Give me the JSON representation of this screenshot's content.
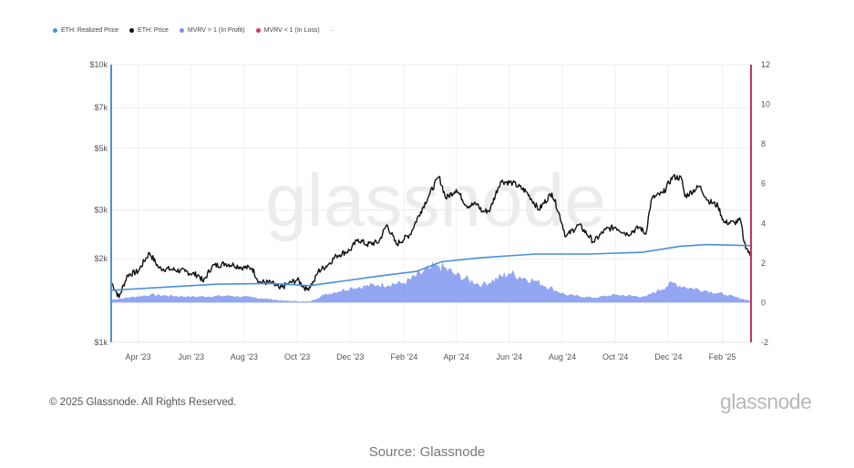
{
  "legend": {
    "items": [
      {
        "label": "ETH: Realized Price",
        "color": "#4a90d9"
      },
      {
        "label": "ETH: Price",
        "color": "#111111"
      },
      {
        "label": "MVRV > 1 (In Profit)",
        "color": "#7b8ff0"
      },
      {
        "label": "MVRV < 1 (In Loss)",
        "color": "#d9365e"
      }
    ],
    "more": "–"
  },
  "watermark": "glassnode",
  "footer": {
    "copyright": "© 2025 Glassnode. All Rights Reserved.",
    "brand": "glassnode",
    "source": "Source: Glassnode"
  },
  "colors": {
    "price": "#111111",
    "realized": "#4a90d9",
    "mvrv_fill": "#8096ef",
    "left_axis": "#4a90d9",
    "right_axis": "#c8325c",
    "watermark": "#ececec"
  },
  "chart_data": {
    "type": "line",
    "title": "",
    "x_range": [
      "2023-03-01",
      "2025-03-05"
    ],
    "y_left": {
      "scale": "log",
      "ylim": [
        1000,
        10000
      ],
      "ticks": [
        {
          "v": 1000,
          "label": "$1k"
        },
        {
          "v": 2000,
          "label": "$2k"
        },
        {
          "v": 3000,
          "label": "$3k"
        },
        {
          "v": 5000,
          "label": "$5k"
        },
        {
          "v": 7000,
          "label": "$7k"
        },
        {
          "v": 10000,
          "label": "$10k"
        }
      ]
    },
    "y_right": {
      "scale": "linear",
      "ylim": [
        -2,
        12
      ],
      "ticks": [
        {
          "v": -2,
          "label": "-2"
        },
        {
          "v": 0,
          "label": "0"
        },
        {
          "v": 2,
          "label": "2"
        },
        {
          "v": 4,
          "label": "4"
        },
        {
          "v": 6,
          "label": "6"
        },
        {
          "v": 8,
          "label": "8"
        },
        {
          "v": 10,
          "label": "10"
        },
        {
          "v": 12,
          "label": "12"
        }
      ]
    },
    "x_ticks": [
      {
        "date": "2023-04-01",
        "label": "Apr '23"
      },
      {
        "date": "2023-06-01",
        "label": "Jun '23"
      },
      {
        "date": "2023-08-01",
        "label": "Aug '23"
      },
      {
        "date": "2023-10-01",
        "label": "Oct '23"
      },
      {
        "date": "2023-12-01",
        "label": "Dec '23"
      },
      {
        "date": "2024-02-01",
        "label": "Feb '24"
      },
      {
        "date": "2024-04-01",
        "label": "Apr '24"
      },
      {
        "date": "2024-06-01",
        "label": "Jun '24"
      },
      {
        "date": "2024-08-01",
        "label": "Aug '24"
      },
      {
        "date": "2024-10-01",
        "label": "Oct '24"
      },
      {
        "date": "2024-12-01",
        "label": "Dec '24"
      },
      {
        "date": "2025-02-01",
        "label": "Feb '25"
      }
    ],
    "grid": true,
    "series": [
      {
        "name": "ETH: Price",
        "axis": "left",
        "points": [
          [
            "2023-03-01",
            1650
          ],
          [
            "2023-03-10",
            1450
          ],
          [
            "2023-03-20",
            1750
          ],
          [
            "2023-04-01",
            1800
          ],
          [
            "2023-04-14",
            2100
          ],
          [
            "2023-04-25",
            1850
          ],
          [
            "2023-05-10",
            1830
          ],
          [
            "2023-05-25",
            1800
          ],
          [
            "2023-06-10",
            1740
          ],
          [
            "2023-06-15",
            1650
          ],
          [
            "2023-06-25",
            1880
          ],
          [
            "2023-07-10",
            1920
          ],
          [
            "2023-07-20",
            1900
          ],
          [
            "2023-07-31",
            1860
          ],
          [
            "2023-08-10",
            1850
          ],
          [
            "2023-08-18",
            1650
          ],
          [
            "2023-09-01",
            1640
          ],
          [
            "2023-09-11",
            1560
          ],
          [
            "2023-09-20",
            1620
          ],
          [
            "2023-10-01",
            1680
          ],
          [
            "2023-10-12",
            1550
          ],
          [
            "2023-10-20",
            1650
          ],
          [
            "2023-10-25",
            1800
          ],
          [
            "2023-11-05",
            1900
          ],
          [
            "2023-11-15",
            2050
          ],
          [
            "2023-12-01",
            2150
          ],
          [
            "2023-12-10",
            2350
          ],
          [
            "2023-12-20",
            2250
          ],
          [
            "2024-01-03",
            2300
          ],
          [
            "2024-01-12",
            2650
          ],
          [
            "2024-01-23",
            2250
          ],
          [
            "2024-02-08",
            2450
          ],
          [
            "2024-02-20",
            2950
          ],
          [
            "2024-03-01",
            3400
          ],
          [
            "2024-03-12",
            3950
          ],
          [
            "2024-03-20",
            3300
          ],
          [
            "2024-04-01",
            3550
          ],
          [
            "2024-04-13",
            3100
          ],
          [
            "2024-04-25",
            3150
          ],
          [
            "2024-05-01",
            2950
          ],
          [
            "2024-05-10",
            3000
          ],
          [
            "2024-05-22",
            3800
          ],
          [
            "2024-06-05",
            3750
          ],
          [
            "2024-06-20",
            3500
          ],
          [
            "2024-07-05",
            3000
          ],
          [
            "2024-07-20",
            3450
          ],
          [
            "2024-08-05",
            2400
          ],
          [
            "2024-08-20",
            2650
          ],
          [
            "2024-09-06",
            2300
          ],
          [
            "2024-09-20",
            2550
          ],
          [
            "2024-10-01",
            2600
          ],
          [
            "2024-10-15",
            2450
          ],
          [
            "2024-10-29",
            2600
          ],
          [
            "2024-11-05",
            2450
          ],
          [
            "2024-11-12",
            3300
          ],
          [
            "2024-11-25",
            3450
          ],
          [
            "2024-12-06",
            3950
          ],
          [
            "2024-12-16",
            3900
          ],
          [
            "2024-12-20",
            3350
          ],
          [
            "2025-01-06",
            3650
          ],
          [
            "2025-01-15",
            3250
          ],
          [
            "2025-01-27",
            3100
          ],
          [
            "2025-02-03",
            2700
          ],
          [
            "2025-02-15",
            2700
          ],
          [
            "2025-02-22",
            2750
          ],
          [
            "2025-02-26",
            2300
          ],
          [
            "2025-03-05",
            2050
          ]
        ]
      },
      {
        "name": "ETH: Realized Price",
        "axis": "left",
        "points": [
          [
            "2023-03-01",
            1540
          ],
          [
            "2023-05-01",
            1580
          ],
          [
            "2023-07-01",
            1620
          ],
          [
            "2023-09-01",
            1630
          ],
          [
            "2023-10-15",
            1600
          ],
          [
            "2023-11-15",
            1650
          ],
          [
            "2024-01-01",
            1730
          ],
          [
            "2024-02-15",
            1800
          ],
          [
            "2024-03-15",
            1950
          ],
          [
            "2024-05-01",
            2020
          ],
          [
            "2024-07-01",
            2080
          ],
          [
            "2024-09-01",
            2080
          ],
          [
            "2024-11-01",
            2110
          ],
          [
            "2024-12-15",
            2220
          ],
          [
            "2025-01-15",
            2250
          ],
          [
            "2025-03-05",
            2230
          ]
        ]
      },
      {
        "name": "MVRV > 1 (In Profit)",
        "axis": "right",
        "type": "area",
        "points": [
          [
            "2023-03-01",
            0.15
          ],
          [
            "2023-04-15",
            0.4
          ],
          [
            "2023-06-01",
            0.3
          ],
          [
            "2023-07-15",
            0.35
          ],
          [
            "2023-08-15",
            0.25
          ],
          [
            "2023-09-15",
            0.1
          ],
          [
            "2023-10-15",
            0.05
          ],
          [
            "2023-11-01",
            0.4
          ],
          [
            "2023-12-01",
            0.75
          ],
          [
            "2024-01-01",
            0.9
          ],
          [
            "2024-02-01",
            1.0
          ],
          [
            "2024-03-01",
            1.7
          ],
          [
            "2024-03-12",
            1.9
          ],
          [
            "2024-04-01",
            1.4
          ],
          [
            "2024-05-01",
            0.9
          ],
          [
            "2024-06-01",
            1.5
          ],
          [
            "2024-07-01",
            1.1
          ],
          [
            "2024-08-05",
            0.4
          ],
          [
            "2024-09-06",
            0.25
          ],
          [
            "2024-10-01",
            0.4
          ],
          [
            "2024-11-05",
            0.3
          ],
          [
            "2024-12-06",
            1.0
          ],
          [
            "2024-12-20",
            0.8
          ],
          [
            "2025-01-15",
            0.6
          ],
          [
            "2025-02-05",
            0.4
          ],
          [
            "2025-03-05",
            0.1
          ]
        ]
      }
    ]
  }
}
